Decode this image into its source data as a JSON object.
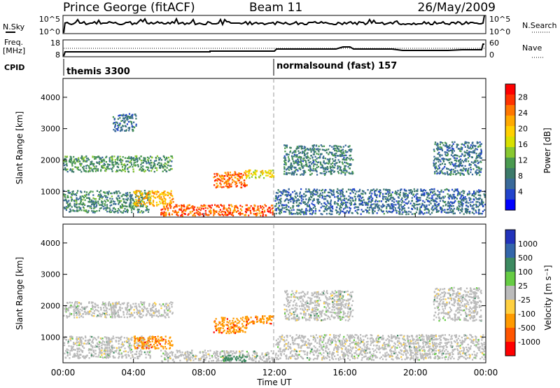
{
  "header": {
    "station": "Prince George (fitACF)",
    "beam": "Beam 11",
    "date": "26/May/2009"
  },
  "top_panels": {
    "nsky": {
      "label": "N.Sky",
      "ticks": [
        "10^5",
        "10^0"
      ]
    },
    "nsearch": {
      "label": "N.Search",
      "ticks": [
        "10^5",
        "10^0"
      ]
    },
    "freq": {
      "label_line1": "Freq.",
      "label_line2": "[MHz]",
      "ticks": [
        "18",
        "8"
      ]
    },
    "nave": {
      "label": "Nave",
      "ticks": [
        "60",
        "0"
      ]
    },
    "cpid": {
      "label": "CPID",
      "segments": [
        {
          "text": "themis 3300",
          "start_hour": 0
        },
        {
          "text": "normalsound (fast) 157",
          "start_hour": 12
        }
      ]
    }
  },
  "axes": {
    "ylabel": "Slant Range [km]",
    "xlabel": "Time UT",
    "yticks": [
      "4000",
      "3000",
      "2000",
      "1000"
    ],
    "xticks": [
      "00:00",
      "04:00",
      "08:00",
      "12:00",
      "16:00",
      "20:00",
      "00:00"
    ]
  },
  "power_colorbar": {
    "label": "Power [dB]",
    "ticks": [
      "28",
      "24",
      "20",
      "16",
      "12",
      "8",
      "4"
    ],
    "colors": [
      "#ff0000",
      "#ff3300",
      "#ff7700",
      "#ffaa00",
      "#ffd000",
      "#d8e000",
      "#88c830",
      "#4a9a50",
      "#3c7a6a",
      "#3a6a9a",
      "#2244cc",
      "#0000ff"
    ]
  },
  "velocity_colorbar": {
    "label": "Velocity [m s⁻¹]",
    "ticks": [
      "1000",
      "500",
      "100",
      "25",
      "-25",
      "-100",
      "-500",
      "-1000"
    ],
    "colors": [
      "#2233bb",
      "#3366aa",
      "#3c8a60",
      "#66cc44",
      "#bbbbbb",
      "#ffd040",
      "#ff9a00",
      "#ff5500",
      "#ff0000"
    ]
  },
  "chart_data": [
    {
      "type": "heatmap",
      "name": "power",
      "xlabel": "Time UT",
      "ylabel": "Slant Range [km]",
      "xlim": [
        0,
        24
      ],
      "ylim": [
        180,
        4600
      ],
      "color_scale": "Power [dB]",
      "regions": [
        {
          "t0": 0.0,
          "t1": 6.3,
          "r0": 1600,
          "r1": 2150,
          "value": 10
        },
        {
          "t0": 0.0,
          "t1": 5.0,
          "r0": 300,
          "r1": 1050,
          "value": 9
        },
        {
          "t0": 4.0,
          "t1": 6.3,
          "r0": 500,
          "r1": 1050,
          "value": 21
        },
        {
          "t0": 5.5,
          "t1": 12.0,
          "r0": 200,
          "r1": 600,
          "value": 26
        },
        {
          "t0": 8.5,
          "t1": 10.5,
          "r0": 1100,
          "r1": 1650,
          "value": 25
        },
        {
          "t0": 10.3,
          "t1": 12.0,
          "r0": 1400,
          "r1": 1700,
          "value": 18
        },
        {
          "t0": 12.0,
          "t1": 24.0,
          "r0": 250,
          "r1": 1100,
          "value": 6
        },
        {
          "t0": 12.5,
          "t1": 16.5,
          "r0": 1500,
          "r1": 2500,
          "value": 8
        },
        {
          "t0": 21.0,
          "t1": 23.8,
          "r0": 1500,
          "r1": 2600,
          "value": 7
        },
        {
          "t0": 2.8,
          "t1": 4.2,
          "r0": 2900,
          "r1": 3500,
          "value": 7
        }
      ]
    },
    {
      "type": "heatmap",
      "name": "velocity",
      "xlabel": "Time UT",
      "ylabel": "Slant Range [km]",
      "xlim": [
        0,
        24
      ],
      "ylim": [
        180,
        4600
      ],
      "color_scale": "Velocity [m s^-1]",
      "regions": [
        {
          "t0": 0.0,
          "t1": 6.3,
          "r0": 1600,
          "r1": 2150,
          "value": 0
        },
        {
          "t0": 0.0,
          "t1": 5.0,
          "r0": 300,
          "r1": 1050,
          "value": 0
        },
        {
          "t0": 4.0,
          "t1": 6.3,
          "r0": 600,
          "r1": 1050,
          "value": -300
        },
        {
          "t0": 5.5,
          "t1": 12.0,
          "r0": 200,
          "r1": 600,
          "value": 0
        },
        {
          "t0": 8.5,
          "t1": 10.5,
          "r0": 1100,
          "r1": 1650,
          "value": -400
        },
        {
          "t0": 10.3,
          "t1": 12.0,
          "r0": 1400,
          "r1": 1700,
          "value": -300
        },
        {
          "t0": 12.0,
          "t1": 24.0,
          "r0": 250,
          "r1": 1100,
          "value": 0
        },
        {
          "t0": 12.5,
          "t1": 16.5,
          "r0": 1500,
          "r1": 2500,
          "value": 0
        },
        {
          "t0": 21.0,
          "t1": 23.8,
          "r0": 1500,
          "r1": 2600,
          "value": 0
        },
        {
          "t0": 9.0,
          "t1": 10.5,
          "r0": 200,
          "r1": 450,
          "value": 80
        }
      ]
    }
  ]
}
